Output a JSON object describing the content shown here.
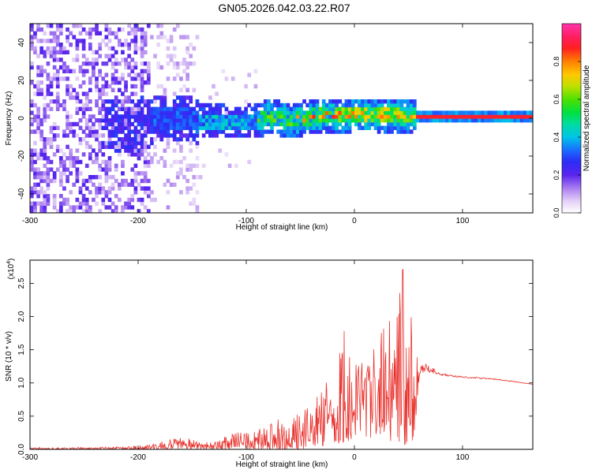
{
  "title": "GN05.2026.042.03.22.R07",
  "colors": {
    "snr_line": "#e8312c",
    "frame": "#000000",
    "background": "#ffffff"
  },
  "chart_data": [
    {
      "type": "heatmap",
      "name": "spectrogram",
      "xlabel": "Height of straight line (km)",
      "ylabel": "Frequency (Hz)",
      "xlim": [
        -300,
        165
      ],
      "ylim": [
        -50,
        50
      ],
      "x_ticks": [
        -300,
        -200,
        -100,
        0,
        100
      ],
      "x_tick_labels": [
        "-300",
        "-200",
        "-100",
        "0",
        "100"
      ],
      "y_ticks": [
        40,
        20,
        0,
        -20,
        -40
      ],
      "y_tick_labels": [
        "40",
        "20",
        "0",
        "-20",
        "-40"
      ],
      "colorbar": {
        "label": "Normalized spectral amplitude",
        "range": [
          0,
          1
        ],
        "ticks": [
          0.0,
          0.2,
          0.4,
          0.6,
          0.8
        ],
        "tick_labels": [
          "0.0",
          "0.2",
          "0.4",
          "0.6",
          "0.8"
        ],
        "colormap": [
          "#ffffff",
          "#c9a8f0",
          "#7b2cf0",
          "#3a1ef5",
          "#1a5bff",
          "#00c8e6",
          "#00e070",
          "#55e000",
          "#d6e000",
          "#ff9a00",
          "#ff1e1e",
          "#ff1e6e",
          "#ff33aa"
        ]
      },
      "band_center": [
        {
          "x": -300,
          "f": 0
        },
        {
          "x": -230,
          "f": -5
        },
        {
          "x": -200,
          "f": -4
        },
        {
          "x": -180,
          "f": -1
        },
        {
          "x": -150,
          "f": -2
        },
        {
          "x": -120,
          "f": -3
        },
        {
          "x": -100,
          "f": -3
        },
        {
          "x": -80,
          "f": 0
        },
        {
          "x": -60,
          "f": -2
        },
        {
          "x": -50,
          "f": -1
        },
        {
          "x": -30,
          "f": 1
        },
        {
          "x": -10,
          "f": 0
        },
        {
          "x": 0,
          "f": 1
        },
        {
          "x": 20,
          "f": 1
        },
        {
          "x": 40,
          "f": 0
        },
        {
          "x": 55,
          "f": 0
        },
        {
          "x": 100,
          "f": 0
        },
        {
          "x": 165,
          "f": 0
        }
      ]
    },
    {
      "type": "line",
      "name": "snr",
      "xlabel": "Height of straight line (km)",
      "ylabel": "SNR (10 * v/v)",
      "y_multiplier_label": "(x10",
      "y_multiplier_exp": "4",
      "y_multiplier_close": ")",
      "xlim": [
        -300,
        165
      ],
      "ylim": [
        0,
        2.85
      ],
      "x_ticks": [
        -300,
        -200,
        -100,
        0,
        100
      ],
      "x_tick_labels": [
        "-300",
        "-200",
        "-100",
        "0",
        "100"
      ],
      "y_ticks": [
        0.0,
        0.5,
        1.0,
        1.5,
        2.0,
        2.5
      ],
      "y_tick_labels": [
        "0.0",
        "0.5",
        "1.0",
        "1.5",
        "2.0",
        "2.5"
      ],
      "series": [
        {
          "name": "SNR",
          "envelope_x": [
            -300,
            -250,
            -200,
            -180,
            -160,
            -140,
            -130,
            -120,
            -110,
            -100,
            -90,
            -80,
            -70,
            -60,
            -50,
            -40,
            -30,
            -20,
            -10,
            0,
            10,
            20,
            30,
            40,
            45,
            50,
            55,
            60,
            65,
            70,
            80,
            90,
            100,
            120,
            140,
            165
          ],
          "envelope_hi": [
            0.03,
            0.03,
            0.05,
            0.12,
            0.18,
            0.12,
            0.1,
            0.2,
            0.25,
            0.3,
            0.32,
            0.38,
            0.45,
            0.5,
            0.55,
            0.65,
            0.9,
            1.2,
            1.9,
            1.3,
            1.5,
            1.7,
            1.9,
            2.3,
            2.85,
            2.4,
            1.6,
            1.25,
            1.3,
            1.25,
            1.15,
            1.12,
            1.1,
            1.08,
            1.05,
            0.98
          ],
          "envelope_lo": [
            0.0,
            0.0,
            0.0,
            0.0,
            0.01,
            0.0,
            0.0,
            0.0,
            0.0,
            0.0,
            0.0,
            0.0,
            0.0,
            0.0,
            0.0,
            0.0,
            0.05,
            0.05,
            0.1,
            0.15,
            0.2,
            0.15,
            0.1,
            0.1,
            0.05,
            0.1,
            0.1,
            1.1,
            1.1,
            1.12,
            1.1,
            1.08,
            1.07,
            1.05,
            1.02,
            0.98
          ]
        }
      ]
    }
  ]
}
